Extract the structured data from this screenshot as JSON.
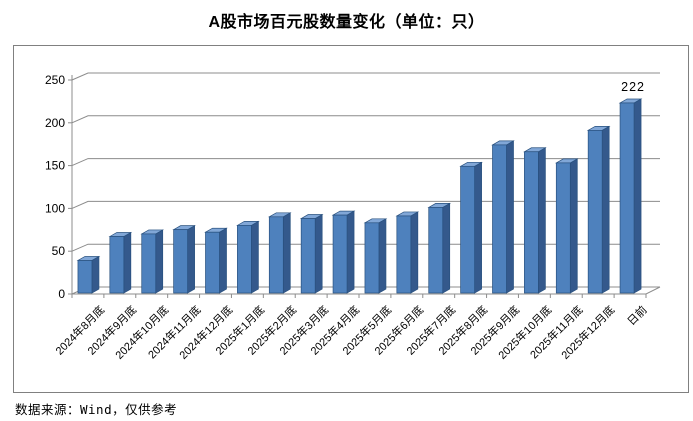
{
  "page": {
    "title": "A股市场百元股数量变化（单位：只）",
    "footer": "数据来源：Wind，仅供参考"
  },
  "chart_data": {
    "type": "bar",
    "style": "3d-column",
    "title": "A股市场百元股数量变化（单位：只）",
    "unit_label": "只",
    "categories": [
      "2024年8月底",
      "2024年9月底",
      "2024年10月底",
      "2024年11月底",
      "2024年12月底",
      "2025年1月底",
      "2025年2月底",
      "2025年3月底",
      "2025年4月底",
      "2025年5月底",
      "2025年6月底",
      "2025年7月底",
      "2025年8月底",
      "2025年9月底",
      "2025年10月底",
      "2025年11月底",
      "2025年12月底",
      "日前"
    ],
    "values": [
      38,
      66,
      69,
      74,
      71,
      79,
      89,
      87,
      91,
      82,
      90,
      100,
      148,
      173,
      165,
      152,
      190,
      222
    ],
    "point_labels": [
      {
        "category": "日前",
        "text": "222"
      }
    ],
    "xlabel": "",
    "ylabel": "",
    "ylim": [
      0,
      250
    ],
    "yticks": [
      0,
      50,
      100,
      150,
      200,
      250
    ],
    "grid": true,
    "legend": false,
    "colors": {
      "bar_front": "#4E81BD",
      "bar_top": "#81A7D7",
      "bar_side": "#34598C",
      "bar_outline": "#29517F",
      "gridline": "#8C8C8C",
      "axis_text": "#000000",
      "frame_border": "#808080"
    }
  }
}
